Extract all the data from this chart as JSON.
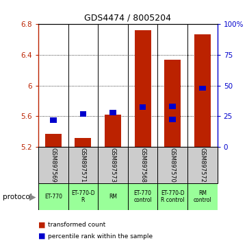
{
  "title": "GDS4474 / 8005204",
  "samples": [
    "GSM897569",
    "GSM897571",
    "GSM897573",
    "GSM897568",
    "GSM897570",
    "GSM897572"
  ],
  "red_bar_bottom": 5.2,
  "red_bar_tops": [
    5.37,
    5.32,
    5.62,
    6.72,
    6.34,
    6.67
  ],
  "blue_square_values": [
    5.55,
    5.63,
    5.65,
    5.72,
    5.56,
    5.97
  ],
  "blue_square_values2": [
    null,
    null,
    null,
    null,
    5.73,
    null
  ],
  "ylim_left": [
    5.2,
    6.8
  ],
  "ylim_right": [
    0,
    100
  ],
  "yticks_left": [
    5.2,
    5.6,
    6.0,
    6.4,
    6.8
  ],
  "yticks_right": [
    0,
    25,
    50,
    75,
    100
  ],
  "ytick_labels_left": [
    "5.2",
    "5.6",
    "6",
    "6.4",
    "6.8"
  ],
  "ytick_labels_right": [
    "0",
    "25",
    "50",
    "75",
    "100%"
  ],
  "bar_color": "#bb2200",
  "square_color": "#0000cc",
  "bar_width": 0.55,
  "protocols": [
    "ET-770",
    "ET-770-D\nR",
    "RM",
    "ET-770\ncontrol",
    "ET-770-D\nR control",
    "RM\ncontrol"
  ],
  "protocol_bg_color": "#99ff99",
  "sample_bg_color": "#cccccc",
  "protocol_label": "protocol",
  "legend_red": "transformed count",
  "legend_blue": "percentile rank within the sample",
  "fig_bg": "#ffffff"
}
